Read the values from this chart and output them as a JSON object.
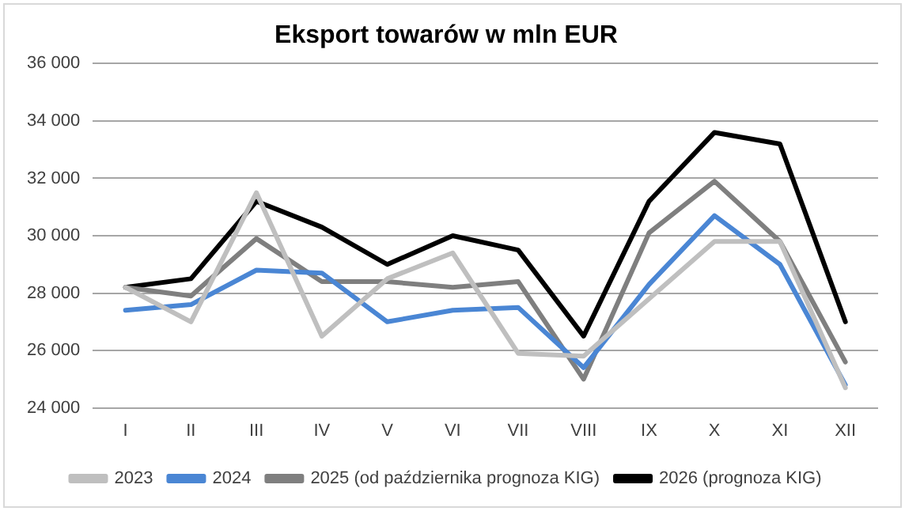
{
  "chart_data": {
    "type": "line",
    "title": "Eksport towarów w mln EUR",
    "categories": [
      "I",
      "II",
      "III",
      "IV",
      "V",
      "VI",
      "VII",
      "VIII",
      "IX",
      "X",
      "XI",
      "XII"
    ],
    "series": [
      {
        "name": "2023",
        "color": "#bfbfbf",
        "values": [
          28200,
          27000,
          31500,
          26500,
          28500,
          29400,
          25900,
          25800,
          27800,
          29800,
          29800,
          24700
        ]
      },
      {
        "name": "2024",
        "color": "#4a86d4",
        "values": [
          27400,
          27600,
          28800,
          28700,
          27000,
          27400,
          27500,
          25400,
          28300,
          30700,
          29000,
          24800
        ]
      },
      {
        "name": "2025 (od października prognoza KIG)",
        "color": "#7f7f7f",
        "values": [
          28200,
          27900,
          29900,
          28400,
          28400,
          28200,
          28400,
          25000,
          30100,
          31900,
          29800,
          25600
        ]
      },
      {
        "name": "2026 (prognoza KIG)",
        "color": "#000000",
        "values": [
          28200,
          28500,
          31200,
          30300,
          29000,
          30000,
          29500,
          26500,
          31200,
          33600,
          33200,
          27000
        ]
      }
    ],
    "ylim": [
      24000,
      36000
    ],
    "yticks": [
      {
        "value": 24000,
        "label": "24 000"
      },
      {
        "value": 26000,
        "label": "26 000"
      },
      {
        "value": 28000,
        "label": "28 000"
      },
      {
        "value": 30000,
        "label": "30 000"
      },
      {
        "value": 32000,
        "label": "32 000"
      },
      {
        "value": 34000,
        "label": "34 000"
      },
      {
        "value": 36000,
        "label": "36 000"
      }
    ],
    "grid": "y",
    "legend": "bottom",
    "marker": "none",
    "line_style": "solid"
  }
}
